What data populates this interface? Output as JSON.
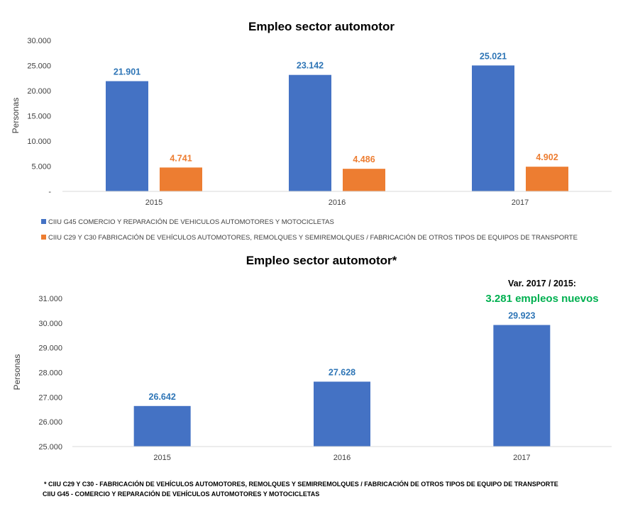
{
  "chart_data": [
    {
      "type": "bar",
      "title": "Empleo sector automotor",
      "ylabel": "Personas",
      "ylim": [
        0,
        30000
      ],
      "yticks": [
        "-",
        "5.000",
        "10.000",
        "15.000",
        "20.000",
        "25.000",
        "30.000"
      ],
      "categories": [
        "2015",
        "2016",
        "2017"
      ],
      "series": [
        {
          "name": "CIIU G45 COMERCIO Y REPARACIÓN DE VEHICULOS AUTOMOTORES Y MOTOCICLETAS",
          "values": [
            21901,
            23142,
            25021
          ],
          "labels": [
            "21.901",
            "23.142",
            "25.021"
          ],
          "color": "#4472C4",
          "label_color": "#2E75B6"
        },
        {
          "name": "CIIU C29 Y C30 FABRICACIÓN DE VEHÍCULOS AUTOMOTORES, REMOLQUES Y SEMIREMOLQUES / FABRICACIÓN DE OTROS TIPOS DE EQUIPOS DE TRANSPORTE",
          "values": [
            4741,
            4486,
            4902
          ],
          "labels": [
            "4.741",
            "4.486",
            "4.902"
          ],
          "color": "#ED7D31",
          "label_color": "#ED7D31"
        }
      ],
      "legend": "bottom",
      "grid": false
    },
    {
      "type": "bar",
      "title": "Empleo sector automotor*",
      "ylabel": "Personas",
      "ylim": [
        25000,
        31000
      ],
      "yticks": [
        "25.000",
        "26.000",
        "27.000",
        "28.000",
        "29.000",
        "30.000",
        "31.000"
      ],
      "categories": [
        "2015",
        "2016",
        "2017"
      ],
      "series": [
        {
          "values": [
            26642,
            27628,
            29923
          ],
          "labels": [
            "26.642",
            "27.628",
            "29.923"
          ],
          "color": "#4472C4",
          "label_color": "#2E75B6"
        }
      ],
      "annotation": {
        "line1": "Var. 2017 / 2015:",
        "line2": "3.281 empleos nuevos",
        "line2_color": "#00B050"
      },
      "footnote": [
        "* CIIU C29 Y C30 - FABRICACIÓN DE VEHÍCULOS AUTOMOTORES, REMOLQUES Y SEMIRREMOLQUES / FABRICACIÓN DE OTROS TIPOS DE EQUIPO DE TRANSPORTE",
        "CIIU G45 - COMERCIO Y REPARACIÓN DE VEHÍCULOS AUTOMOTORES Y MOTOCICLETAS"
      ],
      "legend": "none",
      "grid": false
    }
  ]
}
